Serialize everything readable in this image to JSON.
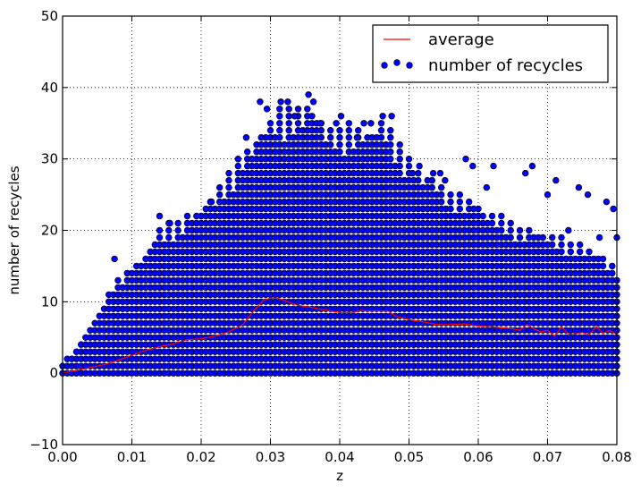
{
  "chart_data": {
    "type": "scatter",
    "xlabel": "z",
    "ylabel": "number of recycles",
    "xlim": [
      0.0,
      0.08
    ],
    "ylim": [
      -10,
      50
    ],
    "x_ticks": [
      "0.00",
      "0.01",
      "0.02",
      "0.03",
      "0.04",
      "0.05",
      "0.06",
      "0.07",
      "0.08"
    ],
    "y_ticks": [
      "−10",
      "0",
      "10",
      "20",
      "30",
      "40",
      "50"
    ],
    "grid": true,
    "legend": {
      "position": "top-right",
      "entries": [
        {
          "label": "average",
          "kind": "line",
          "color": "#ff0000"
        },
        {
          "label": "number of recycles",
          "kind": "marker",
          "color": "#0000ff"
        }
      ]
    },
    "series": [
      {
        "name": "number of recycles",
        "kind": "scatter",
        "color": "#0000ff",
        "upper_envelope": {
          "x": [
            0.0,
            0.002,
            0.004,
            0.006,
            0.008,
            0.01,
            0.012,
            0.014,
            0.016,
            0.018,
            0.02,
            0.022,
            0.024,
            0.026,
            0.028,
            0.03,
            0.032,
            0.034,
            0.036,
            0.038,
            0.04,
            0.042,
            0.044,
            0.046,
            0.048,
            0.05,
            0.052,
            0.054,
            0.056,
            0.058,
            0.06,
            0.062,
            0.064,
            0.066,
            0.068,
            0.07,
            0.072,
            0.074,
            0.076,
            0.078,
            0.08
          ],
          "y": [
            1,
            3,
            6,
            10,
            13,
            15,
            17,
            20,
            21,
            22,
            23,
            25,
            28,
            31,
            33,
            36,
            37,
            37,
            38,
            35,
            34,
            35,
            34,
            36,
            33,
            30,
            28,
            27,
            25,
            25,
            24,
            22,
            22,
            20,
            20,
            19,
            19,
            18,
            17,
            16,
            15
          ]
        },
        "outliers": [
          {
            "x": 0.0075,
            "y": 16
          },
          {
            "x": 0.0285,
            "y": 38
          },
          {
            "x": 0.0295,
            "y": 37
          },
          {
            "x": 0.0315,
            "y": 38
          },
          {
            "x": 0.0325,
            "y": 38
          },
          {
            "x": 0.0335,
            "y": 36
          },
          {
            "x": 0.0355,
            "y": 39
          },
          {
            "x": 0.0362,
            "y": 38
          },
          {
            "x": 0.0372,
            "y": 35
          },
          {
            "x": 0.0395,
            "y": 35
          },
          {
            "x": 0.0402,
            "y": 36
          },
          {
            "x": 0.0435,
            "y": 35
          },
          {
            "x": 0.0445,
            "y": 35
          },
          {
            "x": 0.0462,
            "y": 36
          },
          {
            "x": 0.0475,
            "y": 36
          },
          {
            "x": 0.0535,
            "y": 28
          },
          {
            "x": 0.0545,
            "y": 28
          },
          {
            "x": 0.0582,
            "y": 30
          },
          {
            "x": 0.0592,
            "y": 29
          },
          {
            "x": 0.0622,
            "y": 29
          },
          {
            "x": 0.0668,
            "y": 28
          },
          {
            "x": 0.0678,
            "y": 29
          },
          {
            "x": 0.0712,
            "y": 27
          },
          {
            "x": 0.0745,
            "y": 26
          },
          {
            "x": 0.0758,
            "y": 25
          },
          {
            "x": 0.0785,
            "y": 24
          },
          {
            "x": 0.0795,
            "y": 23
          },
          {
            "x": 0.07,
            "y": 25
          },
          {
            "x": 0.073,
            "y": 20
          },
          {
            "x": 0.0775,
            "y": 19
          },
          {
            "x": 0.08,
            "y": 19
          },
          {
            "x": 0.0612,
            "y": 26
          },
          {
            "x": 0.0552,
            "y": 27
          },
          {
            "x": 0.0515,
            "y": 29
          },
          {
            "x": 0.0505,
            "y": 28
          },
          {
            "x": 0.0425,
            "y": 33
          },
          {
            "x": 0.0265,
            "y": 33
          },
          {
            "x": 0.0215,
            "y": 24
          },
          {
            "x": 0.014,
            "y": 22
          },
          {
            "x": 0.0155,
            "y": 21
          }
        ]
      },
      {
        "name": "average",
        "kind": "line",
        "color": "#ff0000",
        "x": [
          0.0,
          0.002,
          0.004,
          0.006,
          0.008,
          0.01,
          0.012,
          0.014,
          0.016,
          0.018,
          0.02,
          0.022,
          0.024,
          0.026,
          0.027,
          0.028,
          0.029,
          0.03,
          0.031,
          0.032,
          0.033,
          0.034,
          0.036,
          0.038,
          0.04,
          0.042,
          0.043,
          0.044,
          0.046,
          0.047,
          0.048,
          0.05,
          0.052,
          0.054,
          0.056,
          0.058,
          0.06,
          0.062,
          0.064,
          0.065,
          0.066,
          0.067,
          0.068,
          0.069,
          0.07,
          0.071,
          0.072,
          0.073,
          0.074,
          0.075,
          0.076,
          0.077,
          0.078,
          0.079,
          0.08
        ],
        "y": [
          0.0,
          0.4,
          0.8,
          1.2,
          1.8,
          2.5,
          3.2,
          3.7,
          4.1,
          4.7,
          4.8,
          5.2,
          5.8,
          6.8,
          8.0,
          9.2,
          10.2,
          10.5,
          10.5,
          10.2,
          9.8,
          9.5,
          9.2,
          8.8,
          8.5,
          8.5,
          8.8,
          8.7,
          8.7,
          8.7,
          8.0,
          7.5,
          7.2,
          6.8,
          6.8,
          6.9,
          6.6,
          6.5,
          6.3,
          6.2,
          6.0,
          6.8,
          6.2,
          5.8,
          6.0,
          5.2,
          6.5,
          5.5,
          5.5,
          5.7,
          5.4,
          6.5,
          5.6,
          6.0,
          5.4
        ]
      }
    ]
  }
}
